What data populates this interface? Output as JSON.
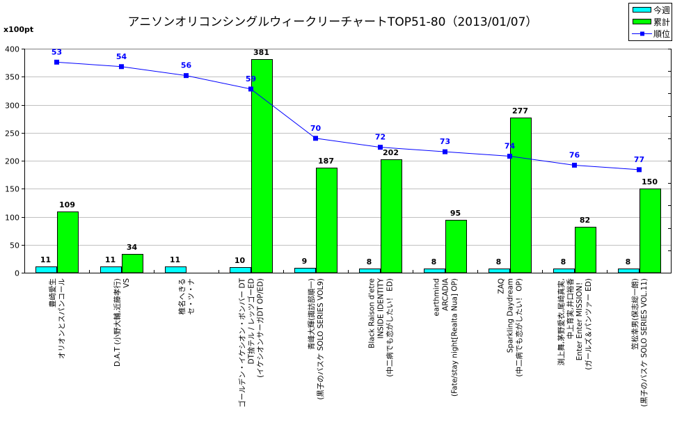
{
  "chart_data": {
    "type": "bar",
    "title": "アニソンオリコンシングルウィークリーチャートTOP51-80（2013/01/07）",
    "ylabel": "x100pt",
    "ylim": [
      0,
      400
    ],
    "yticks": [
      0,
      50,
      100,
      150,
      200,
      250,
      300,
      350,
      400
    ],
    "y2lim": [
      50,
      100
    ],
    "y2_reversed": true,
    "y2ticks": [
      50,
      55,
      60,
      65,
      70,
      75,
      80,
      85,
      90,
      95,
      100
    ],
    "y2_tick_labels_visible": false,
    "grid": true,
    "legend_position": "top-right",
    "legend": [
      {
        "name": "今週",
        "kind": "bar",
        "color": "#00ffff"
      },
      {
        "name": "累計",
        "kind": "bar",
        "color": "#00ff00"
      },
      {
        "name": "順位",
        "kind": "line",
        "color": "#0000ff"
      }
    ],
    "categories": [
      [
        "豊崎愛生",
        "オリオンとスパンコール"
      ],
      [
        "D.A.T (小野大輔,近藤孝行)",
        "VS"
      ],
      [
        "椎名へきる",
        "セ・ツ・ナ"
      ],
      [
        "ゴールデン・イケシオン・ボンバー DT",
        "DT捨テル / レッツゴーED",
        "(イケシオンサーガDT OP/ED)"
      ],
      [
        "青峰大輝(諏訪部順一)",
        "(黒子のバスケ SOLO SERIES VOL9)"
      ],
      [
        "Black Raison d'etre",
        "INSIDE IDENTITY",
        "(中二病でも恋がしたい！ ED)"
      ],
      [
        "earthmind",
        "ARCADIA",
        "(Fate/stay night[Realta Nua] OP)"
      ],
      [
        "ZAQ",
        "Sparkling Daydream",
        "(中二病でも恋がしたい！ OP)"
      ],
      [
        "渕上舞,茅野愛衣,尾崎真実,",
        "中上育実,井口裕香",
        "Enter Enter MISSION！",
        "(ガールズ＆パンツァー ED)"
      ],
      [
        "笠松幸男(保志総一朗)",
        "(黒子のバスケ SOLO SERIES VOL.11)"
      ]
    ],
    "series": [
      {
        "name": "今週",
        "type": "bar",
        "color": "#00ffff",
        "values": [
          11,
          11,
          11,
          10,
          9,
          8,
          8,
          8,
          8,
          8
        ]
      },
      {
        "name": "累計",
        "type": "bar",
        "color": "#00ff00",
        "values": [
          109,
          34,
          null,
          381,
          187,
          202,
          95,
          277,
          82,
          150
        ]
      },
      {
        "name": "順位",
        "type": "line",
        "axis": "secondary",
        "color": "#0000ff",
        "values": [
          53,
          54,
          56,
          59,
          70,
          72,
          73,
          74,
          76,
          77
        ]
      }
    ]
  }
}
